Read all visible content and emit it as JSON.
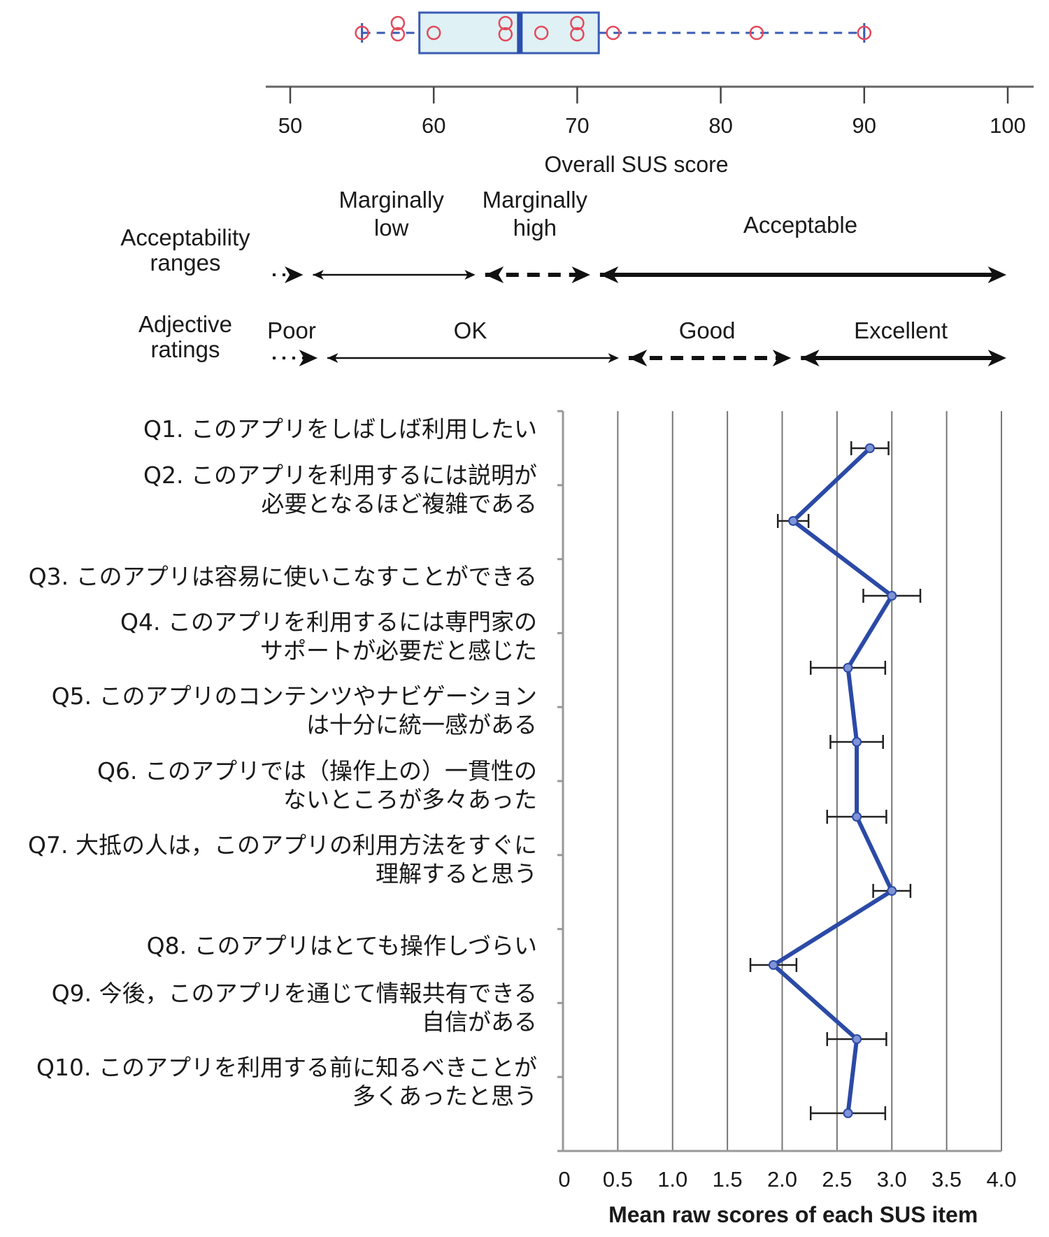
{
  "chart_data": [
    {
      "type": "box",
      "xlabel": "Overall SUS score",
      "xlim": [
        50,
        100
      ],
      "xticks": [
        "50",
        "60",
        "70",
        "80",
        "90",
        "100"
      ],
      "box": {
        "whisker_low": 55,
        "q1": 59,
        "median": 66,
        "q3": 71.5,
        "whisker_high": 90
      },
      "points": [
        55,
        57.5,
        57.5,
        60,
        65,
        65,
        67.5,
        70,
        70,
        72.5,
        82.5,
        90
      ],
      "colors": {
        "box_fill": "#dff1f4",
        "box_edge": "#3a5bb5",
        "points": "#e5485a",
        "median": "#2b4fae"
      }
    },
    {
      "type": "ranges",
      "title": "Acceptability ranges",
      "title_lines": [
        "Acceptability",
        "ranges"
      ],
      "segments": [
        {
          "label": "",
          "from": 50,
          "to": 51,
          "style": "dotted"
        },
        {
          "label": "Marginally low",
          "label_lines": [
            "Marginally",
            "low"
          ],
          "from": 51,
          "to": 63,
          "style": "thin"
        },
        {
          "label": "Marginally high",
          "label_lines": [
            "Marginally",
            "high"
          ],
          "from": 63,
          "to": 71,
          "style": "dashed"
        },
        {
          "label": "Acceptable",
          "label_lines": [
            "Acceptable"
          ],
          "from": 71,
          "to": 100,
          "style": "thick"
        }
      ]
    },
    {
      "type": "ranges",
      "title": "Adjective ratings",
      "title_lines": [
        "Adjective",
        "ratings"
      ],
      "segments": [
        {
          "label": "Poor",
          "label_lines": [
            "Poor"
          ],
          "from": 50,
          "to": 52,
          "style": "dotted"
        },
        {
          "label": "OK",
          "label_lines": [
            "OK"
          ],
          "from": 52,
          "to": 73,
          "style": "thin"
        },
        {
          "label": "Good",
          "label_lines": [
            "Good"
          ],
          "from": 73,
          "to": 85,
          "style": "dashed"
        },
        {
          "label": "Excellent",
          "label_lines": [
            "Excellent"
          ],
          "from": 85,
          "to": 100,
          "style": "thick"
        }
      ]
    },
    {
      "type": "line",
      "orientation": "horizontal",
      "xlabel": "Mean raw scores of each SUS item",
      "xlim": [
        0,
        4.0
      ],
      "xticks": [
        "0",
        "0.5",
        "1.0",
        "1.5",
        "2.0",
        "2.5",
        "3.0",
        "3.5",
        "4.0"
      ],
      "grid": true,
      "color": "#2b4aa6",
      "items": [
        {
          "id": "Q1",
          "lines": [
            "Q1. このアプリをしばしば利用したい"
          ],
          "mean": 2.8,
          "err": 0.17
        },
        {
          "id": "Q2",
          "lines": [
            "Q2. このアプリを利用するには説明が",
            "必要となるほど複雑である"
          ],
          "mean": 2.1,
          "err": 0.14
        },
        {
          "id": "Q3",
          "lines": [
            "Q3. このアプリは容易に使いこなすことができる"
          ],
          "mean": 3.0,
          "err": 0.26
        },
        {
          "id": "Q4",
          "lines": [
            "Q4. このアプリを利用するには専門家の",
            "サポートが必要だと感じた"
          ],
          "mean": 2.6,
          "err": 0.34
        },
        {
          "id": "Q5",
          "lines": [
            "Q5. このアプリのコンテンツやナビゲーション",
            "は十分に統一感がある"
          ],
          "mean": 2.68,
          "err": 0.24
        },
        {
          "id": "Q6",
          "lines": [
            "Q6. このアプリでは（操作上の）一貫性の",
            "ないところが多々あった"
          ],
          "mean": 2.68,
          "err": 0.27
        },
        {
          "id": "Q7",
          "lines": [
            "Q7. 大抵の人は，このアプリの利用方法をすぐに",
            "理解すると思う"
          ],
          "mean": 3.0,
          "err": 0.17
        },
        {
          "id": "Q8",
          "lines": [
            "Q8. このアプリはとても操作しづらい"
          ],
          "mean": 1.92,
          "err": 0.21
        },
        {
          "id": "Q9",
          "lines": [
            "Q9. 今後，このアプリを通じて情報共有できる",
            "自信がある"
          ],
          "mean": 2.68,
          "err": 0.27
        },
        {
          "id": "Q10",
          "lines": [
            "Q10. このアプリを利用する前に知るべきことが",
            "多くあったと思う"
          ],
          "mean": 2.6,
          "err": 0.34
        }
      ]
    }
  ]
}
